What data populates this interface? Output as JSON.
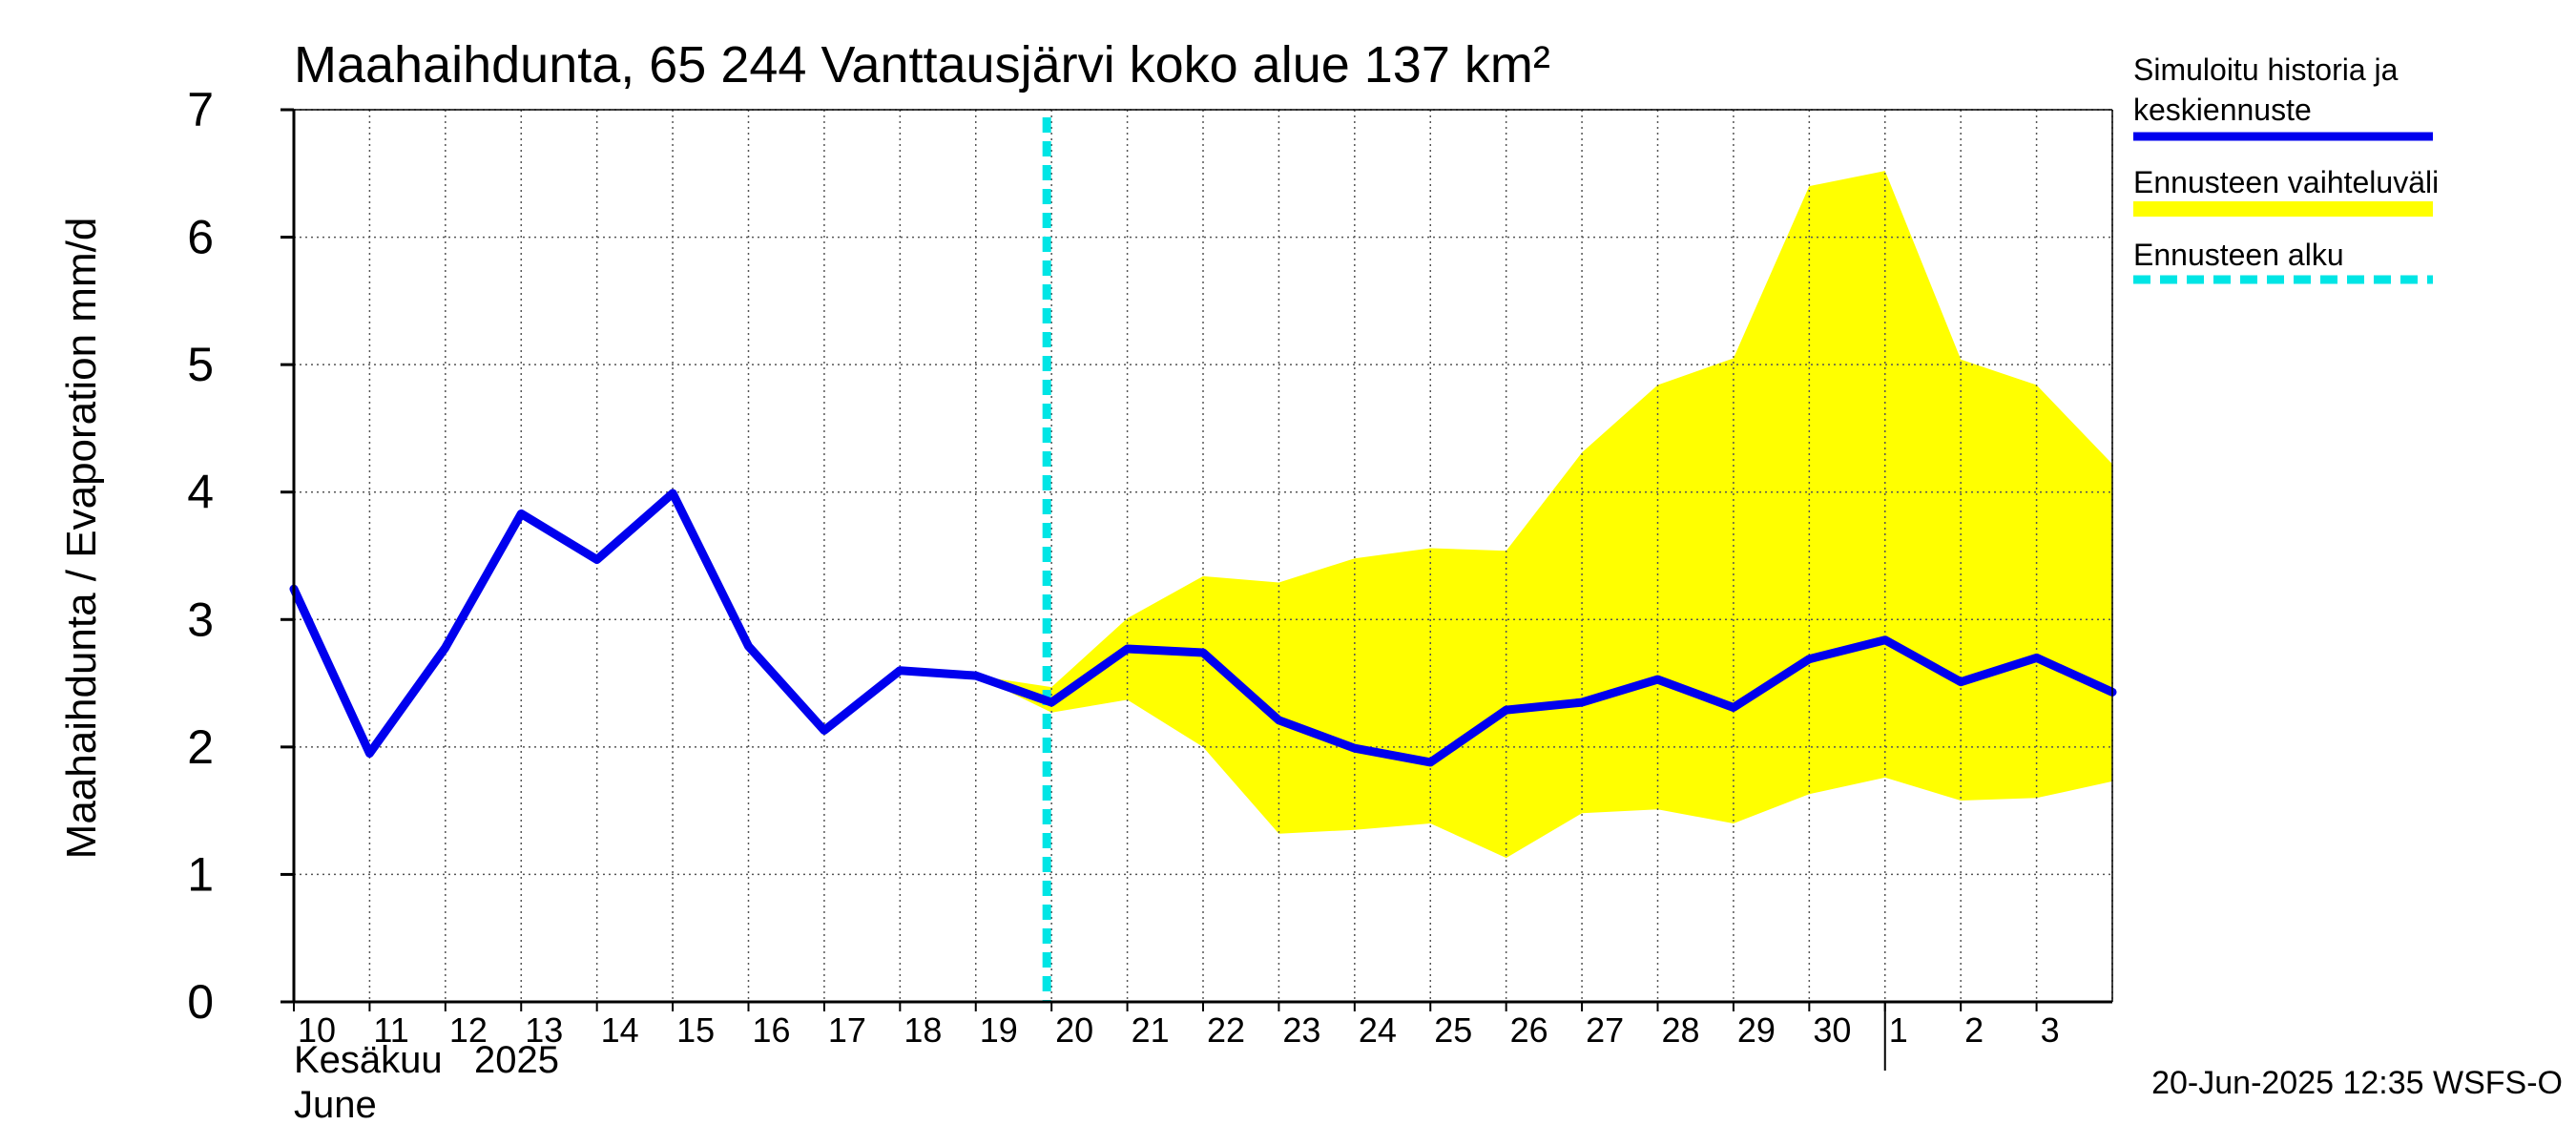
{
  "chart_data": {
    "type": "line",
    "title": "Maahaihdunta, 65 244 Vanttausjärvi koko alue 137 km²",
    "ylabel": "Maahaihdunta / Evaporation   mm/d",
    "ylim": [
      0,
      7
    ],
    "yticks": [
      "0",
      "1",
      "2",
      "3",
      "4",
      "5",
      "6",
      "7"
    ],
    "x_tick_labels": [
      "10",
      "11",
      "12",
      "13",
      "14",
      "15",
      "16",
      "17",
      "18",
      "19",
      "20",
      "21",
      "22",
      "23",
      "24",
      "25",
      "26",
      "27",
      "28",
      "29",
      "30",
      "1",
      "2",
      "3"
    ],
    "month_label_fi": "Kesäkuu   2025",
    "month_label_en": "June",
    "grid": true,
    "legend_position": "right",
    "forecast_start_index": 10,
    "series": [
      {
        "name": "Simuloitu historia ja keskiennuste",
        "color": "#0000ee",
        "values": [
          3.24,
          1.95,
          2.78,
          3.83,
          3.47,
          3.99,
          2.79,
          2.13,
          2.6,
          2.56,
          2.35,
          2.77,
          2.74,
          2.21,
          1.99,
          1.88,
          2.29,
          2.35,
          2.53,
          2.31,
          2.69,
          2.84,
          2.51,
          2.7,
          2.43
        ]
      },
      {
        "name": "Ennusteen vaihteluväli",
        "type": "band",
        "color": "#ffff00",
        "start_index": 9,
        "upper": [
          2.56,
          2.47,
          3.01,
          3.34,
          3.29,
          3.48,
          3.56,
          3.54,
          4.31,
          4.84,
          5.05,
          6.4,
          6.52,
          5.04,
          4.84,
          4.22
        ],
        "lower": [
          2.56,
          2.27,
          2.37,
          2.0,
          1.32,
          1.35,
          1.4,
          1.13,
          1.48,
          1.51,
          1.4,
          1.63,
          1.76,
          1.58,
          1.6,
          1.73
        ]
      },
      {
        "name": "Ennusteen alku",
        "type": "vline",
        "color": "#00e5e5"
      }
    ],
    "legend": [
      {
        "label": "Simuloitu historia ja",
        "label2": "keskiennuste",
        "color": "#0000ee",
        "style": "solid"
      },
      {
        "label": "Ennusteen vaihteluväli",
        "label2": "",
        "color": "#ffff00",
        "style": "solid"
      },
      {
        "label": "Ennusteen alku",
        "label2": "",
        "color": "#00e5e5",
        "style": "dashed"
      }
    ],
    "footer": "20-Jun-2025 12:35 WSFS-O"
  }
}
